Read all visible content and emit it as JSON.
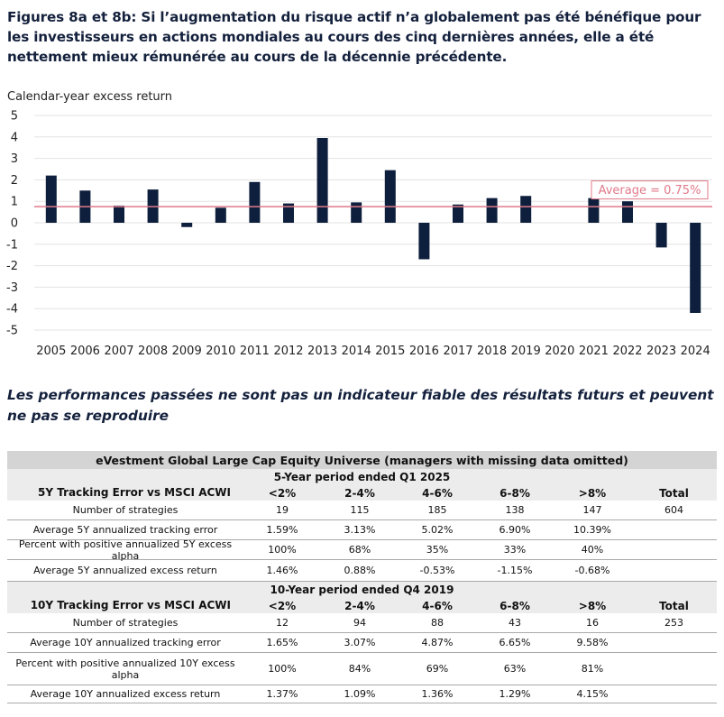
{
  "title": "Figures 8a et 8b: Si l’augmentation du risque actif n’a globalement pas été bénéfique pour les investisseurs en actions mondiales au cours des cinq dernières années, elle a été nettement mieux rémunérée au cours de la décennie précédente.",
  "disclaimer": "Les performances passées ne sont pas un indicateur fiable des résultats futurs et peuvent ne pas se reproduire",
  "chart_data": {
    "type": "bar",
    "title": "",
    "ylabel": "Calendar-year excess return",
    "xlabel": "",
    "categories": [
      "2005",
      "2006",
      "2007",
      "2008",
      "2009",
      "2010",
      "2011",
      "2012",
      "2013",
      "2014",
      "2015",
      "2016",
      "2017",
      "2018",
      "2019",
      "2020",
      "2021",
      "2022",
      "2023",
      "2024"
    ],
    "values": [
      2.2,
      1.5,
      0.8,
      1.55,
      -0.2,
      0.7,
      1.9,
      0.9,
      3.95,
      0.95,
      2.45,
      -1.7,
      0.85,
      1.15,
      1.25,
      0,
      1.15,
      1.0,
      -1.15,
      -4.2
    ],
    "ylim": [
      -5,
      5
    ],
    "yticks": [
      5,
      4,
      3,
      2,
      1,
      0,
      -1,
      -2,
      -3,
      -4,
      -5
    ],
    "grid": true,
    "bar_color": "#0d1f3c",
    "average": {
      "value": 0.75,
      "label": "Average = 0.75%",
      "color": "#e07a8a"
    }
  },
  "table": {
    "header": "eVestment Global Large Cap Equity Universe (managers with missing data omitted)",
    "section1": {
      "period": "5-Year period ended Q1 2025",
      "label": "5Y Tracking Error vs MSCI ACWI",
      "cols": [
        "<2%",
        "2-4%",
        "4-6%",
        "6-8%",
        ">8%",
        "Total"
      ],
      "rows": [
        {
          "label": "Number of strategies",
          "values": [
            "19",
            "115",
            "185",
            "138",
            "147",
            "604"
          ]
        },
        {
          "label": "Average 5Y annualized tracking error",
          "values": [
            "1.59%",
            "3.13%",
            "5.02%",
            "6.90%",
            "10.39%",
            ""
          ]
        },
        {
          "label": "Percent with positive annualized 5Y excess alpha",
          "values": [
            "100%",
            "68%",
            "35%",
            "33%",
            "40%",
            ""
          ]
        },
        {
          "label": "Average 5Y annualized excess return",
          "values": [
            "1.46%",
            "0.88%",
            "-0.53%",
            "-1.15%",
            "-0.68%",
            ""
          ]
        }
      ]
    },
    "section2": {
      "period": "10-Year period ended Q4 2019",
      "label": "10Y Tracking Error vs MSCI ACWI",
      "cols": [
        "<2%",
        "2-4%",
        "4-6%",
        "6-8%",
        ">8%",
        "Total"
      ],
      "rows": [
        {
          "label": "Number of strategies",
          "values": [
            "12",
            "94",
            "88",
            "43",
            "16",
            "253"
          ]
        },
        {
          "label": "Average 10Y annualized tracking error",
          "values": [
            "1.65%",
            "3.07%",
            "4.87%",
            "6.65%",
            "9.58%",
            ""
          ]
        },
        {
          "label": "Percent with positive annualized 10Y excess alpha",
          "values": [
            "100%",
            "84%",
            "69%",
            "63%",
            "81%",
            ""
          ]
        },
        {
          "label": "Average 10Y annualized excess return",
          "values": [
            "1.37%",
            "1.09%",
            "1.36%",
            "1.29%",
            "4.15%",
            ""
          ]
        }
      ]
    }
  }
}
